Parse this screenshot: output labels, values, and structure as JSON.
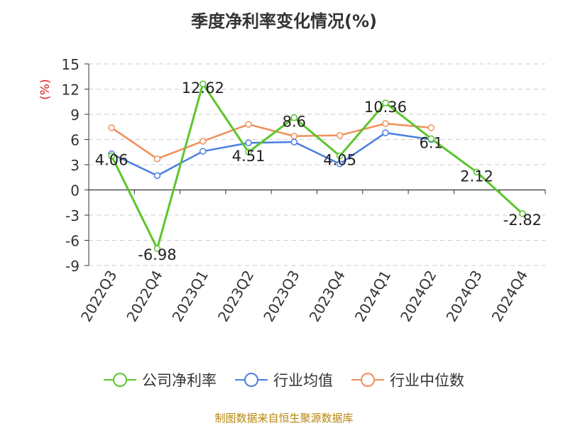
{
  "chart_data": {
    "type": "line",
    "title": "季度净利率变化情况(%)",
    "ylabel": "(%)",
    "ylim": [
      -9,
      15
    ],
    "yticks": [
      15,
      12,
      9,
      6,
      3,
      0,
      -3,
      -6,
      -9
    ],
    "grid": true,
    "legend_position": "bottom",
    "categories": [
      "2022Q3",
      "2022Q4",
      "2023Q1",
      "2023Q2",
      "2023Q3",
      "2023Q4",
      "2024Q1",
      "2024Q2",
      "2024Q3",
      "2024Q4"
    ],
    "series": [
      {
        "name": "公司净利率",
        "color": "#5cc52c",
        "values": [
          4.06,
          -6.98,
          12.62,
          4.51,
          8.6,
          4.05,
          10.36,
          6.1,
          2.12,
          -2.82
        ],
        "labels": [
          "4.06",
          "-6.98",
          "12.62",
          "4.51",
          "8.6",
          "4.05",
          "10.36",
          "6.1",
          "2.12",
          "-2.82"
        ]
      },
      {
        "name": "行业均值",
        "color": "#4a7fe0",
        "values": [
          4.3,
          1.7,
          4.6,
          5.6,
          5.7,
          3.1,
          6.8,
          6.0,
          null,
          null
        ]
      },
      {
        "name": "行业中位数",
        "color": "#f08f5a",
        "values": [
          7.4,
          3.7,
          5.8,
          7.8,
          6.4,
          6.5,
          7.9,
          7.4,
          null,
          null
        ]
      }
    ]
  },
  "source": "制图数据来自恒生聚源数据库"
}
